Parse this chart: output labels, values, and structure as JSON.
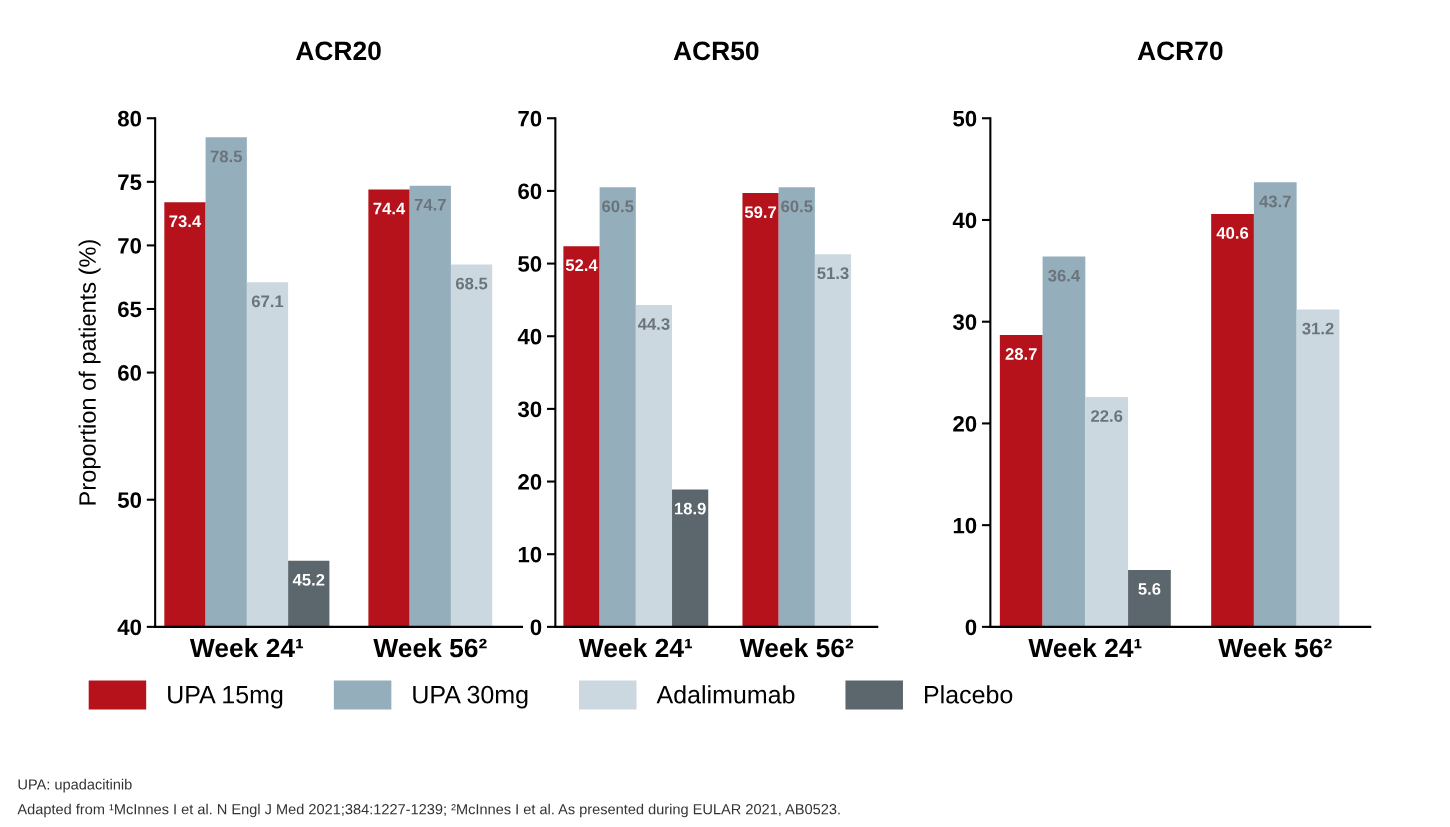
{
  "chart_data": [
    {
      "type": "bar",
      "title": "ACR20",
      "ylabel": "Proportion of patients (%)",
      "categories": [
        "Week 24¹",
        "Week 56²"
      ],
      "ylim": [
        40,
        80
      ],
      "yticks": [
        40,
        50,
        60,
        65,
        70,
        75,
        80
      ],
      "data_labels": true,
      "legend": "bottom",
      "series": [
        {
          "name": "UPA 15mg",
          "color": "#b5121b",
          "values": [
            73.4,
            74.4
          ]
        },
        {
          "name": "UPA 30mg",
          "color": "#95aebc",
          "values": [
            78.5,
            74.7
          ]
        },
        {
          "name": "Adalimumab",
          "color": "#cbd8df",
          "values": [
            67.1,
            68.5
          ]
        },
        {
          "name": "Placebo",
          "color": "#5c666d",
          "values": [
            45.2,
            null
          ]
        }
      ],
      "annotations": [
        "UPA: upadacitinib",
        "Adapted from ¹McInnes I et al. N Engl J Med 2021;384:1227-1239; ²McInnes I et al. As presented during EULAR 2021, AB0523."
      ]
    },
    {
      "type": "bar",
      "title": "ACR50",
      "categories": [
        "Week 24¹",
        "Week 56²"
      ],
      "ylim": [
        0,
        70
      ],
      "yticks": [
        0,
        10,
        20,
        30,
        40,
        50,
        60,
        70
      ],
      "data_labels": true,
      "series": [
        {
          "color": "#b5121b",
          "values": [
            52.4,
            59.7
          ]
        },
        {
          "color": "#95aebc",
          "values": [
            60.5,
            60.5
          ]
        },
        {
          "color": "#cbd8df",
          "values": [
            44.3,
            51.3
          ]
        },
        {
          "color": "#5c666d",
          "values": [
            18.9,
            null
          ]
        }
      ]
    },
    {
      "type": "bar",
      "title": "ACR70",
      "categories": [
        "Week 24¹",
        "Week 56²"
      ],
      "ylim": [
        0,
        50
      ],
      "yticks": [
        0,
        10,
        20,
        30,
        40,
        50
      ],
      "data_labels": true,
      "series": [
        {
          "color": "#b5121b",
          "values": [
            28.7,
            40.6
          ]
        },
        {
          "color": "#95aebc",
          "values": [
            36.4,
            43.7
          ]
        },
        {
          "color": "#cbd8df",
          "values": [
            22.6,
            31.2
          ]
        },
        {
          "color": "#5c666d",
          "values": [
            5.6,
            null
          ]
        }
      ]
    }
  ]
}
